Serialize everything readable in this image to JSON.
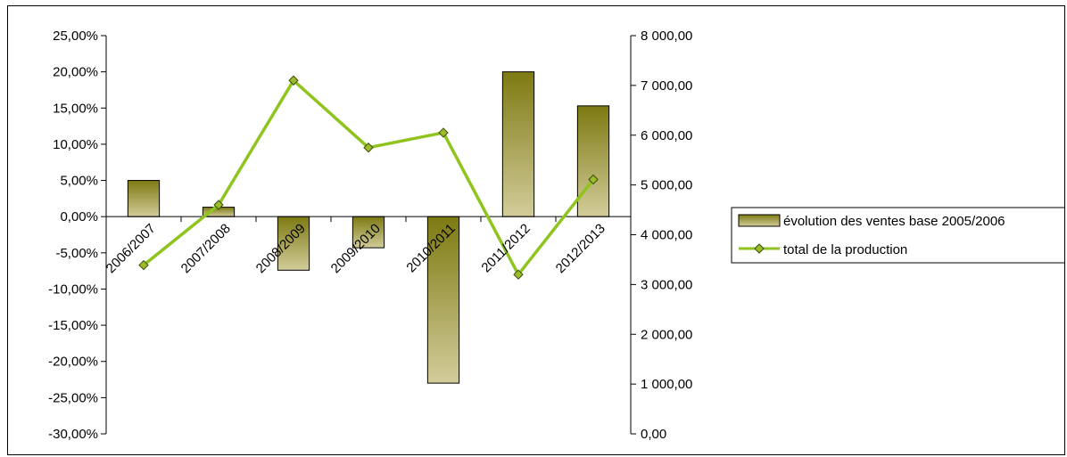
{
  "chart_data": {
    "type": "bar",
    "categories": [
      "2006/2007",
      "2007/2008",
      "2008/2009",
      "2009/2010",
      "2010/2011",
      "2011/2012",
      "2012/2013"
    ],
    "series": [
      {
        "name": "évolution des ventes base 2005/2006",
        "type": "bar",
        "axis": "left",
        "values": [
          5.0,
          1.3,
          -7.4,
          -4.3,
          -23.0,
          20.0,
          15.3
        ],
        "unit": "%"
      },
      {
        "name": "total de la production",
        "type": "line",
        "axis": "right",
        "values": [
          3390,
          4600,
          7100,
          5750,
          6050,
          3200,
          5110
        ]
      }
    ],
    "y_left": {
      "ylim": [
        -30,
        25
      ],
      "ticks": [
        "25,00%",
        "20,00%",
        "15,00%",
        "10,00%",
        "5,00%",
        "0,00%",
        "-5,00%",
        "-10,00%",
        "-15,00%",
        "-20,00%",
        "-25,00%",
        "-30,00%"
      ]
    },
    "y_right": {
      "ylim": [
        0,
        8000
      ],
      "ticks": [
        "8 000,00",
        "7 000,00",
        "6 000,00",
        "5 000,00",
        "4 000,00",
        "3 000,00",
        "2 000,00",
        "1 000,00",
        "0,00"
      ]
    },
    "grid": false,
    "legend_position": "right",
    "colors": {
      "bar_top": "#7d7a12",
      "bar_bottom": "#d2cc9a",
      "line": "#8fc41e",
      "marker_fill": "#9bbd2a",
      "marker_stroke": "#3a4a08"
    }
  },
  "legend": {
    "bar_label": "évolution des ventes base 2005/2006",
    "line_label": "total de la production"
  }
}
